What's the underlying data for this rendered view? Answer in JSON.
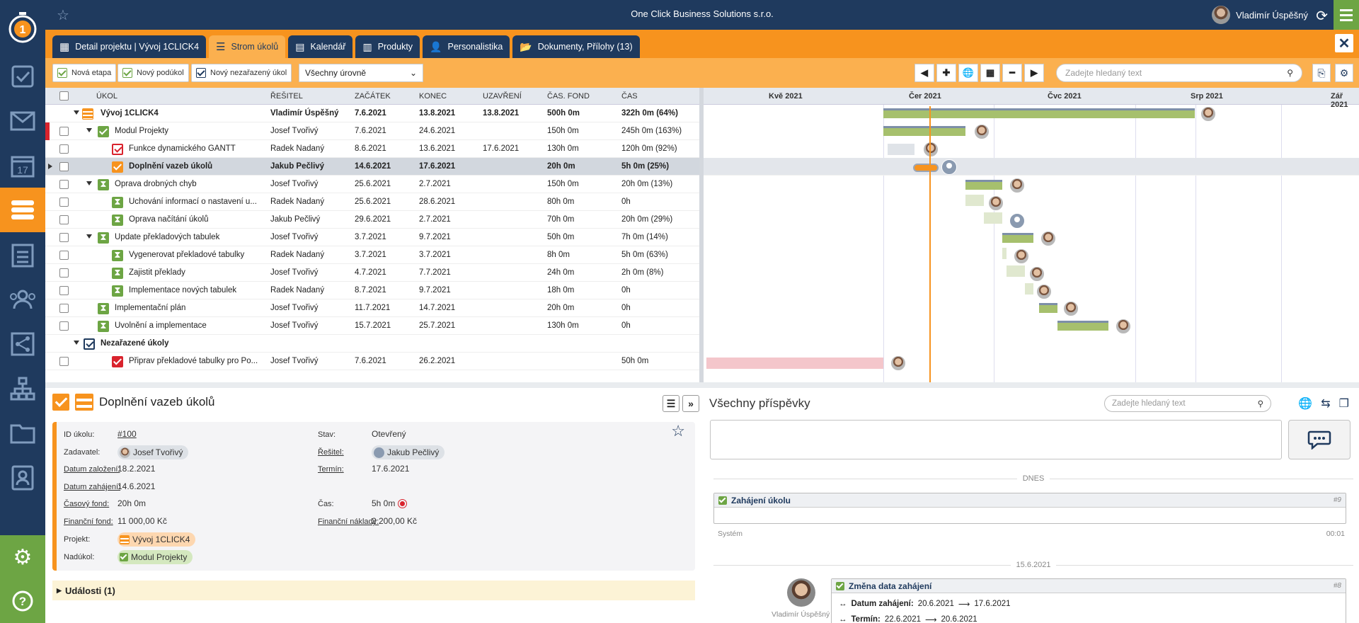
{
  "topbar": {
    "title": "One Click Business Solutions s.r.o.",
    "user": "Vladimír Úspěšný"
  },
  "sidebar": {
    "items": [
      "check-icon",
      "mail-icon",
      "calendar-icon",
      "tasks-icon",
      "clipboard-icon",
      "people-icon",
      "share-icon",
      "org-chart-icon",
      "folder-icon",
      "contacts-icon"
    ],
    "calendar_day": "17"
  },
  "tabs": [
    {
      "label": "Detail projektu | Vývoj 1CLICK4",
      "icon": "dashboard-icon"
    },
    {
      "label": "Strom úkolů",
      "icon": "tasks-icon"
    },
    {
      "label": "Kalendář",
      "icon": "calendar-icon"
    },
    {
      "label": "Produkty",
      "icon": "products-icon"
    },
    {
      "label": "Personalistika",
      "icon": "person-icon"
    },
    {
      "label": "Dokumenty, Přílohy (13)",
      "icon": "folder-icon"
    }
  ],
  "toolbar": {
    "new_stage": "Nová etapa",
    "new_subtask": "Nový podúkol",
    "new_unassigned": "Nový nezařazený úkol",
    "level_select": "Všechny úrovně",
    "search_placeholder": "Zadejte hledaný text"
  },
  "columns": {
    "task": "ÚKOL",
    "solver": "ŘEŠITEL",
    "start": "ZAČÁTEK",
    "end": "KONEC",
    "closed": "UZAVŘENÍ",
    "fund": "ČAS. FOND",
    "time": "ČAS"
  },
  "gantt_months": [
    "Kvě 2021",
    "Čer 2021",
    "Čvc 2021",
    "Srp 2021",
    "Zář 2021"
  ],
  "rows": [
    {
      "name": "Vývoj 1CLICK4",
      "solver": "Vladimír Úspěšný",
      "start": "7.6.2021",
      "end": "13.8.2021",
      "closed": "13.8.2021",
      "fund": "500h 0m",
      "time": "322h 0m (64%)"
    },
    {
      "name": "Modul Projekty",
      "solver": "Josef Tvořivý",
      "start": "7.6.2021",
      "end": "24.6.2021",
      "closed": "",
      "fund": "150h 0m",
      "time": "245h 0m (163%)"
    },
    {
      "name": "Funkce dynamického GANTT",
      "solver": "Radek Nadaný",
      "start": "8.6.2021",
      "end": "13.6.2021",
      "closed": "17.6.2021",
      "fund": "130h 0m",
      "time": "120h 0m (92%)"
    },
    {
      "name": "Doplnění vazeb úkolů",
      "solver": "Jakub Pečlivý",
      "start": "14.6.2021",
      "end": "17.6.2021",
      "closed": "",
      "fund": "20h 0m",
      "time": "5h 0m (25%)"
    },
    {
      "name": "Oprava drobných chyb",
      "solver": "Josef Tvořivý",
      "start": "25.6.2021",
      "end": "2.7.2021",
      "closed": "",
      "fund": "150h 0m",
      "time": "20h 0m (13%)"
    },
    {
      "name": "Uchování informací o nastavení u...",
      "solver": "Radek Nadaný",
      "start": "25.6.2021",
      "end": "28.6.2021",
      "closed": "",
      "fund": "80h 0m",
      "time": "0h"
    },
    {
      "name": "Oprava načítání úkolů",
      "solver": "Jakub Pečlivý",
      "start": "29.6.2021",
      "end": "2.7.2021",
      "closed": "",
      "fund": "70h 0m",
      "time": "20h 0m (29%)"
    },
    {
      "name": "Update překladových tabulek",
      "solver": "Josef Tvořivý",
      "start": "3.7.2021",
      "end": "9.7.2021",
      "closed": "",
      "fund": "50h 0m",
      "time": "7h 0m (14%)"
    },
    {
      "name": "Vygenerovat překladové tabulky",
      "solver": "Radek Nadaný",
      "start": "3.7.2021",
      "end": "3.7.2021",
      "closed": "",
      "fund": "8h 0m",
      "time": "5h 0m (63%)"
    },
    {
      "name": "Zajistit překlady",
      "solver": "Josef Tvořivý",
      "start": "4.7.2021",
      "end": "7.7.2021",
      "closed": "",
      "fund": "24h 0m",
      "time": "2h 0m (8%)"
    },
    {
      "name": "Implementace nových tabulek",
      "solver": "Radek Nadaný",
      "start": "8.7.2021",
      "end": "9.7.2021",
      "closed": "",
      "fund": "18h 0m",
      "time": "0h"
    },
    {
      "name": "Implementační plán",
      "solver": "Josef Tvořivý",
      "start": "11.7.2021",
      "end": "14.7.2021",
      "closed": "",
      "fund": "20h 0m",
      "time": "0h"
    },
    {
      "name": "Uvolnění a implementace",
      "solver": "Josef Tvořivý",
      "start": "15.7.2021",
      "end": "25.7.2021",
      "closed": "",
      "fund": "130h 0m",
      "time": "0h"
    },
    {
      "name": "Nezařazené úkoly",
      "solver": "",
      "start": "",
      "end": "",
      "closed": "",
      "fund": "",
      "time": ""
    },
    {
      "name": "Připrav překladové tabulky pro Po...",
      "solver": "Josef Tvořivý",
      "start": "7.6.2021",
      "end": "26.2.2021",
      "closed": "",
      "fund": "",
      "time": "50h 0m"
    }
  ],
  "detail": {
    "title": "Doplnění vazeb úkolů",
    "id_label": "ID úkolu:",
    "id": "#100",
    "assigner_label": "Zadavatel:",
    "assigner": "Josef Tvořivý",
    "created_label": "Datum založení:",
    "created": "18.2.2021",
    "started_label": "Datum zahájení:",
    "started": "14.6.2021",
    "fund_label": "Časový fond:",
    "fund": "20h 0m",
    "finance_label": "Finanční fond:",
    "finance": "11 000,00 Kč",
    "project_label": "Projekt:",
    "project": "Vývoj 1CLICK4",
    "parent_label": "Nadúkol:",
    "parent": "Modul Projekty",
    "state_label": "Stav:",
    "state": "Otevřený",
    "solver_label": "Řešitel:",
    "solver": "Jakub Pečlivý",
    "deadline_label": "Termín:",
    "deadline": "17.6.2021",
    "time_label": "Čas:",
    "time": "5h 0m",
    "costs_label": "Finanční náklady:",
    "costs": "2 200,00 Kč",
    "events": "Události (1)"
  },
  "posts": {
    "title": "Všechny příspěvky",
    "search_placeholder": "Zadejte hledaný text",
    "today": "DNES",
    "post1": {
      "title": "Zahájení úkolu",
      "num": "#9",
      "author": "Systém",
      "time": "00:01"
    },
    "date2": "15.6.2021",
    "post2": {
      "title": "Změna data zahájení",
      "num": "#8",
      "author": "Vladimír Úspěšný",
      "line1_label": "Datum zahájení:",
      "line1_from": "20.6.2021",
      "line1_to": "17.6.2021",
      "line2_label": "Termín:",
      "line2_from": "22.6.2021",
      "line2_to": "20.6.2021"
    }
  },
  "colors": {
    "navy": "#1f3a5e",
    "orange": "#f7931e",
    "green": "#6da544"
  }
}
